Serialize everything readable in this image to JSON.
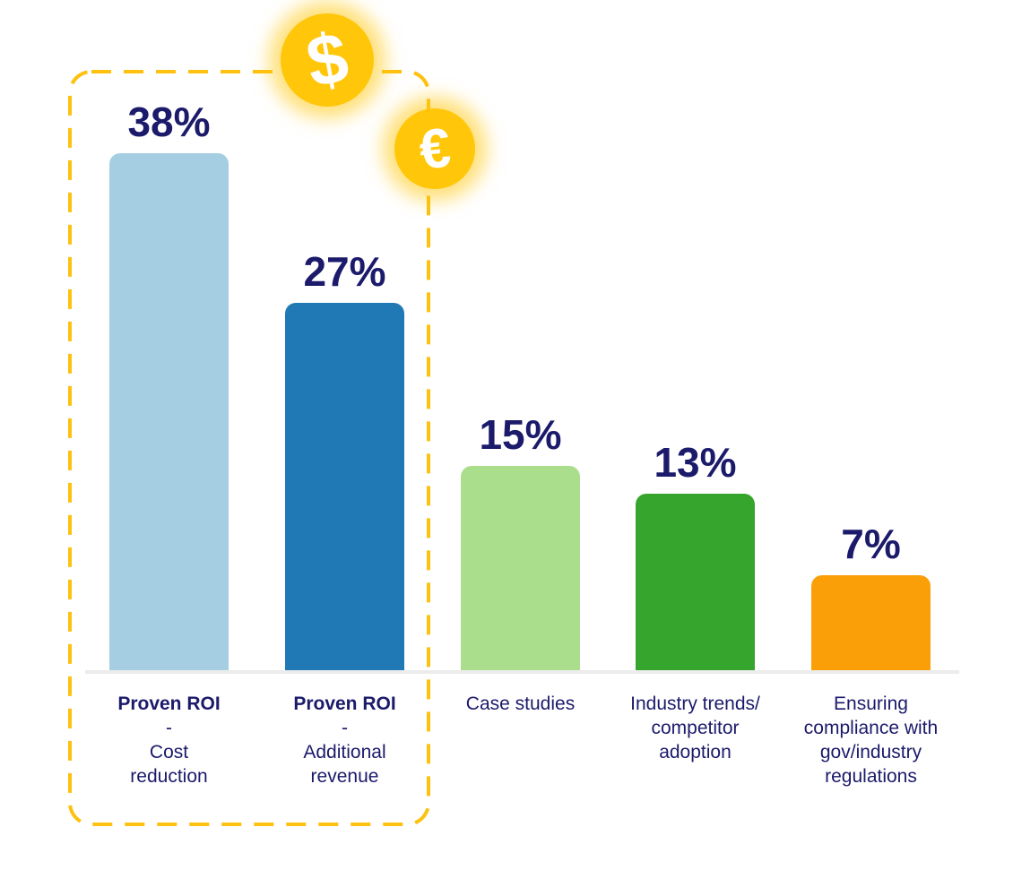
{
  "chart_data": {
    "type": "bar",
    "title": "",
    "categories": [
      "Proven ROI - Cost reduction",
      "Proven ROI - Additional revenue",
      "Case studies",
      "Industry trends/ competitor adoption",
      "Ensuring compliance with gov/industry regulations"
    ],
    "values": [
      38,
      27,
      15,
      13,
      7
    ],
    "value_labels": [
      "38%",
      "27%",
      "15%",
      "13%",
      "7%"
    ],
    "value_suffix": "%",
    "xlabel": "",
    "ylabel": "",
    "ylim": [
      0,
      40
    ],
    "grid": false,
    "legend": false,
    "annotations": "First two bars (Proven ROI) are enclosed in a yellow dashed rounded box decorated with gold $ and € coin icons"
  },
  "bars": [
    {
      "value_label": "38%",
      "lines": [
        "Proven ROI",
        "-",
        "Cost",
        "reduction"
      ],
      "bold_first": true,
      "color": "#A6CEE3"
    },
    {
      "value_label": "27%",
      "lines": [
        "Proven ROI",
        "-",
        "Additional",
        "revenue"
      ],
      "bold_first": true,
      "color": "#2078B4"
    },
    {
      "value_label": "15%",
      "lines": [
        "Case studies"
      ],
      "bold_first": false,
      "color": "#ABDE8C"
    },
    {
      "value_label": "13%",
      "lines": [
        "Industry trends/",
        "competitor",
        "adoption"
      ],
      "bold_first": false,
      "color": "#36A52D"
    },
    {
      "value_label": "7%",
      "lines": [
        "Ensuring",
        "compliance with",
        "gov/industry",
        "regulations"
      ],
      "bold_first": false,
      "color": "#FB9F08"
    }
  ],
  "decorations": {
    "dollar_symbol": "$",
    "euro_symbol": "€"
  },
  "colors": {
    "text_navy": "#1B1A6B",
    "coin_gold": "#FFC60A",
    "dashed_border": "#FDC110",
    "baseline_gray": "#ECECEC",
    "background": "#FFFFFF"
  }
}
